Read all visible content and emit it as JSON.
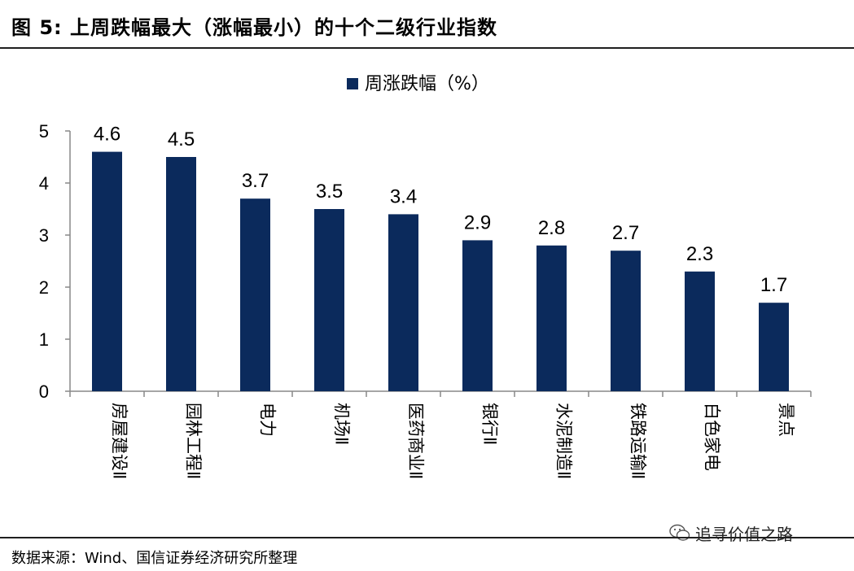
{
  "header": {
    "title": "图 5:  上周跌幅最大（涨幅最小）的十个二级行业指数"
  },
  "chart_data": {
    "type": "bar",
    "legend": {
      "label": "周涨跌幅（%）",
      "position": "top-center"
    },
    "categories": [
      "房屋建设Ⅱ",
      "园林工程Ⅱ",
      "电力",
      "机场Ⅱ",
      "医药商业Ⅱ",
      "银行Ⅱ",
      "水泥制造Ⅱ",
      "铁路运输Ⅱ",
      "白色家电",
      "景点"
    ],
    "values": [
      4.6,
      4.5,
      3.7,
      3.5,
      3.4,
      2.9,
      2.8,
      2.7,
      2.3,
      1.7
    ],
    "data_labels": [
      "4.6",
      "4.5",
      "3.7",
      "3.5",
      "3.4",
      "2.9",
      "2.8",
      "2.7",
      "2.3",
      "1.7"
    ],
    "y_ticks": [
      "0",
      "1",
      "2",
      "3",
      "4",
      "5"
    ],
    "ylim": [
      0,
      5
    ],
    "bar_color": "#0b2a5c",
    "grid": false
  },
  "footer": {
    "source": "数据来源：Wind、国信证券经济研究所整理"
  },
  "watermark": {
    "text": "追寻价值之路",
    "icon": "wechat-icon"
  }
}
